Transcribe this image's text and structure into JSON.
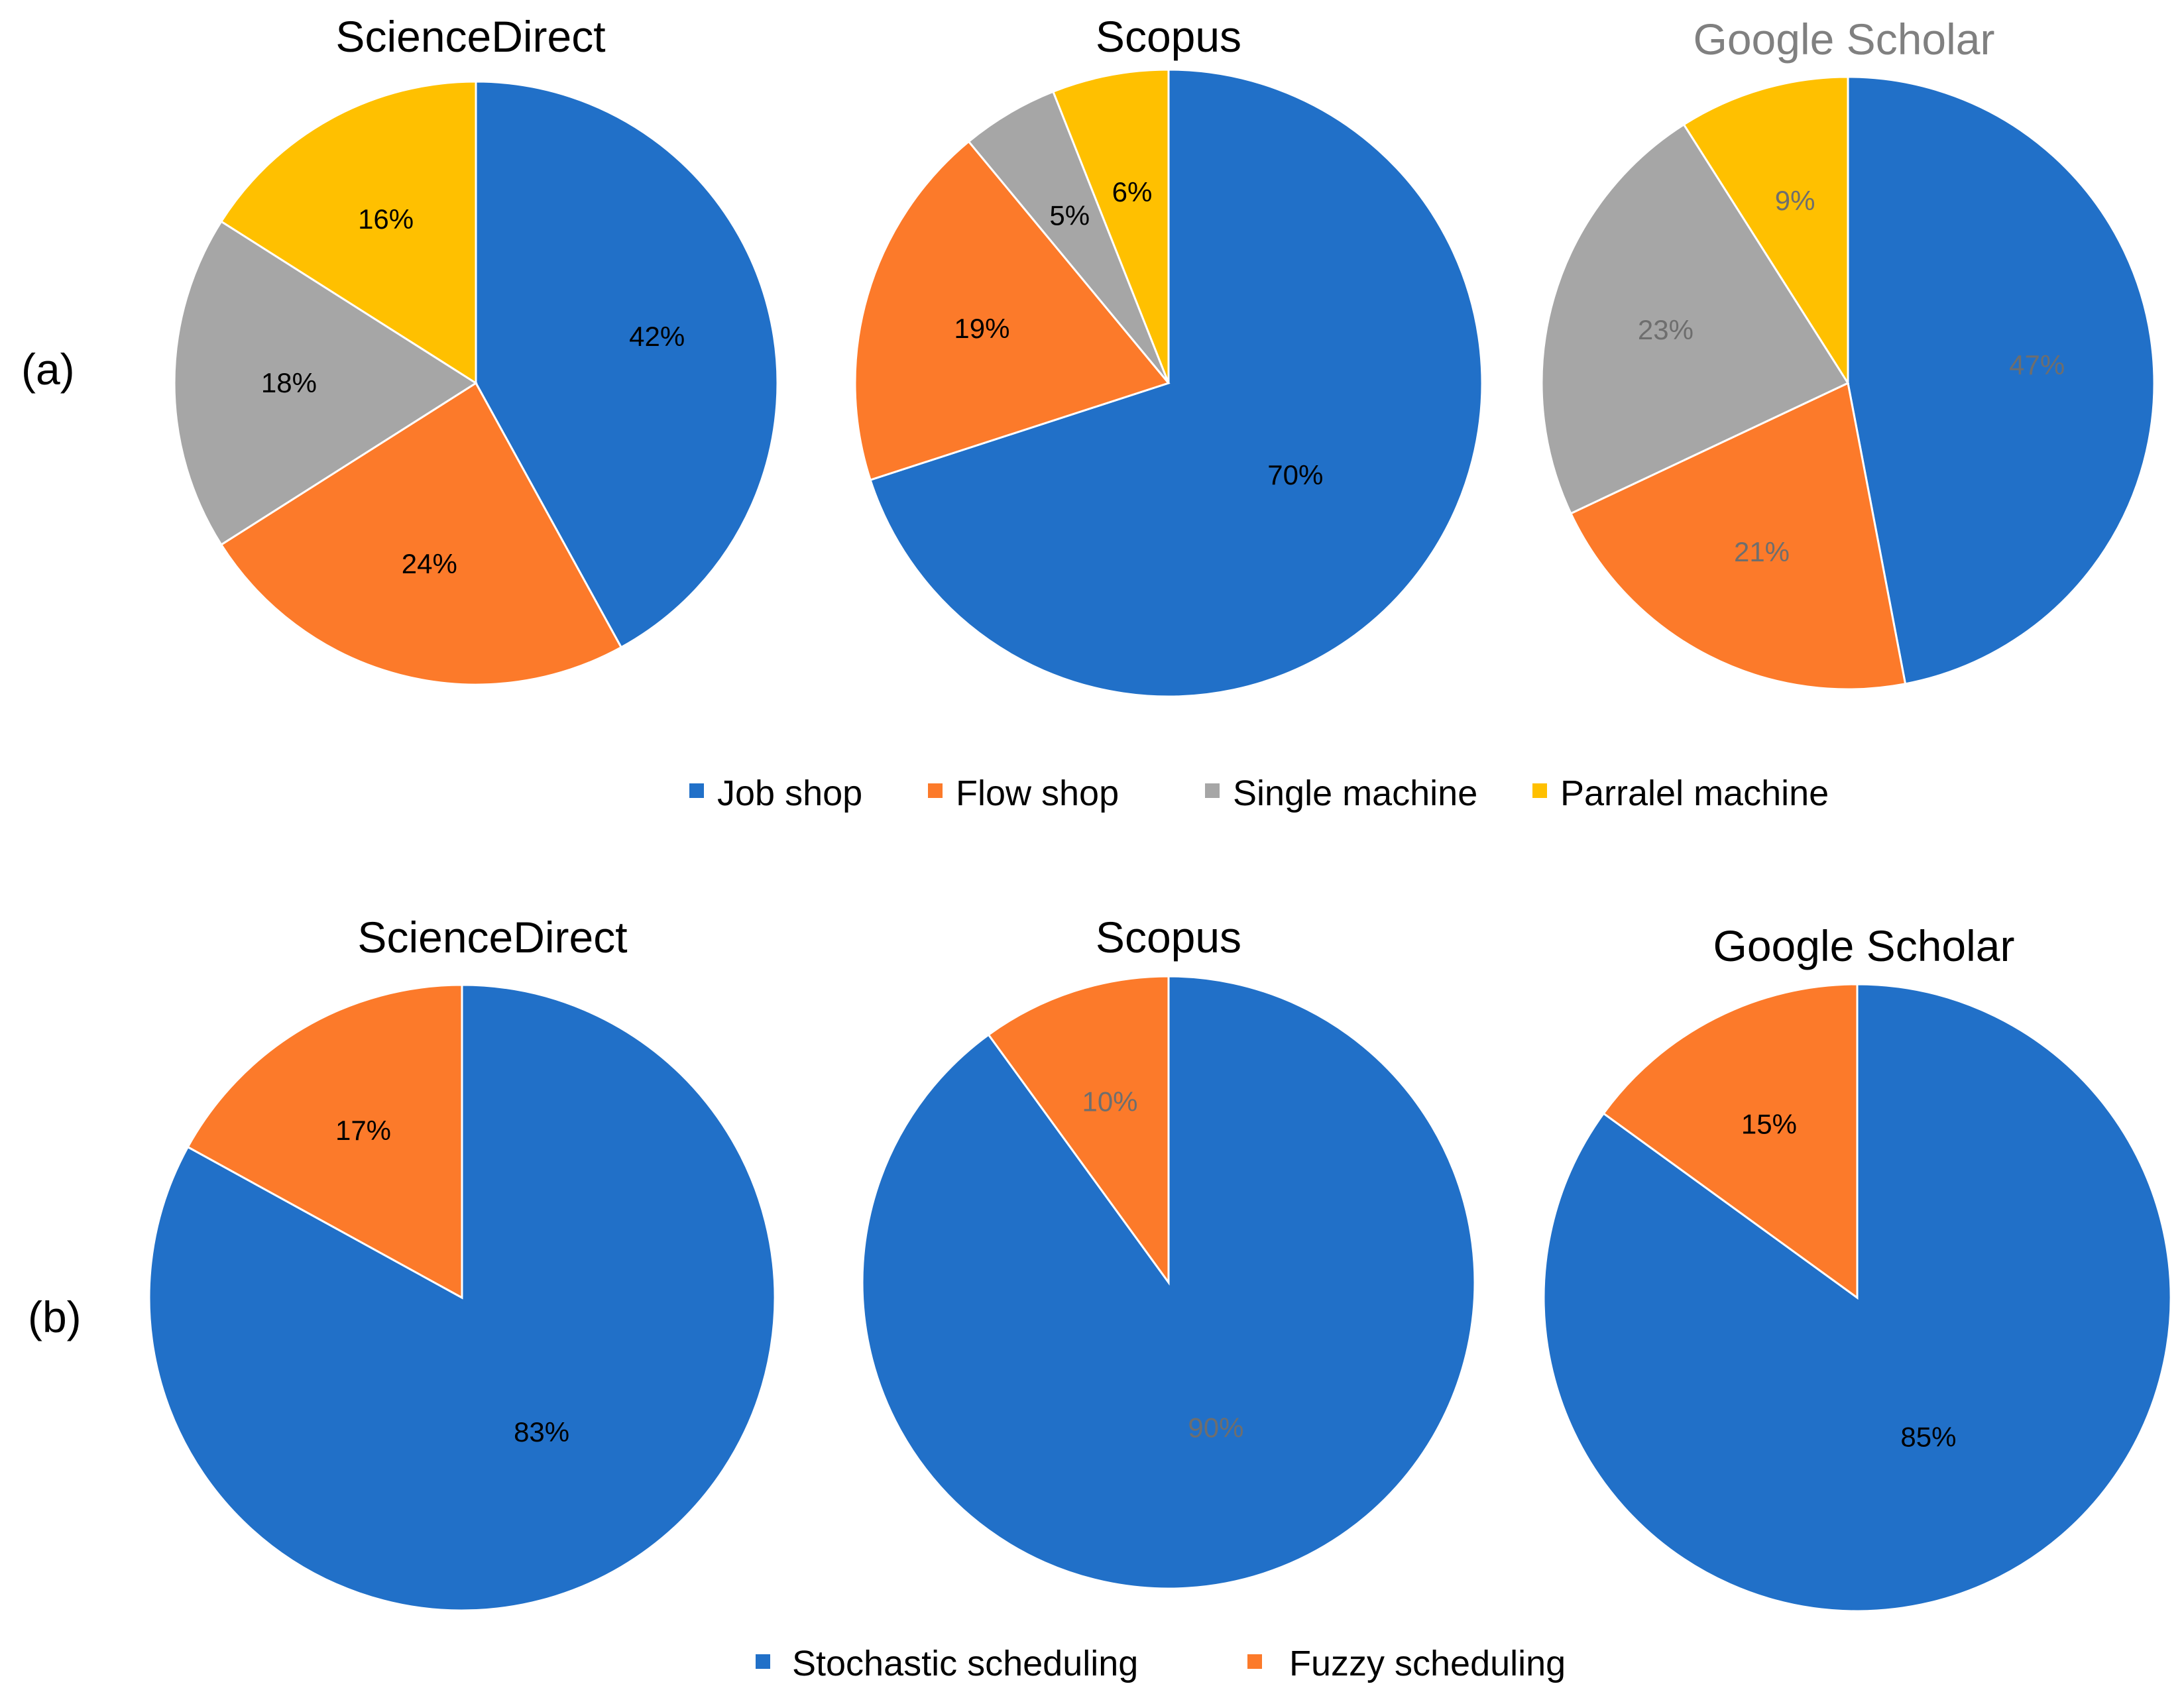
{
  "colors": {
    "blue": "#2170C8",
    "orange": "#FC7A2A",
    "gray": "#A6A6A6",
    "yellow": "#FFC000",
    "dark_text": "#000000",
    "muted_text": "#6E6E6E",
    "title_muted": "#808080",
    "stroke": "#ffffff"
  },
  "chart_data": [
    {
      "type": "pie",
      "panel": "(a)",
      "title": "ScienceDirect",
      "title_color": "#000000",
      "labels": [
        "Job shop",
        "Flow shop",
        "Single machine",
        "Parralel machine"
      ],
      "values": [
        42,
        24,
        18,
        16
      ],
      "data_labels": [
        "42%",
        "24%",
        "18%",
        "16%"
      ],
      "colors": [
        "#2170C8",
        "#FC7A2A",
        "#A6A6A6",
        "#FFC000"
      ],
      "label_colors": [
        "#000000",
        "#000000",
        "#000000",
        "#000000"
      ]
    },
    {
      "type": "pie",
      "panel": "(a)",
      "title": "Scopus",
      "title_color": "#000000",
      "labels": [
        "Job shop",
        "Flow shop",
        "Single machine",
        "Parralel machine"
      ],
      "values": [
        70,
        19,
        5,
        6
      ],
      "data_labels": [
        "70%",
        "19%",
        "5%",
        "6%"
      ],
      "colors": [
        "#2170C8",
        "#FC7A2A",
        "#A6A6A6",
        "#FFC000"
      ],
      "label_colors": [
        "#000000",
        "#000000",
        "#000000",
        "#000000"
      ]
    },
    {
      "type": "pie",
      "panel": "(a)",
      "title": "Google Scholar",
      "title_color": "#808080",
      "labels": [
        "Job shop",
        "Flow shop",
        "Single machine",
        "Parralel machine"
      ],
      "values": [
        47,
        21,
        23,
        9
      ],
      "data_labels": [
        "47%",
        "21%",
        "23%",
        "9%"
      ],
      "colors": [
        "#2170C8",
        "#FC7A2A",
        "#A6A6A6",
        "#FFC000"
      ],
      "label_colors": [
        "#6E6E6E",
        "#6E6E6E",
        "#6E6E6E",
        "#6E6E6E"
      ]
    },
    {
      "type": "pie",
      "panel": "(b)",
      "title": "ScienceDirect",
      "title_color": "#000000",
      "labels": [
        "Stochastic scheduling",
        "Fuzzy scheduling"
      ],
      "values": [
        83,
        17
      ],
      "data_labels": [
        "83%",
        "17%"
      ],
      "colors": [
        "#2170C8",
        "#FC7A2A"
      ],
      "label_colors": [
        "#000000",
        "#000000"
      ]
    },
    {
      "type": "pie",
      "panel": "(b)",
      "title": "Scopus",
      "title_color": "#000000",
      "labels": [
        "Stochastic scheduling",
        "Fuzzy scheduling"
      ],
      "values": [
        90,
        10
      ],
      "data_labels": [
        "90%",
        "10%"
      ],
      "colors": [
        "#2170C8",
        "#FC7A2A"
      ],
      "label_colors": [
        "#6E6E6E",
        "#6E6E6E"
      ]
    },
    {
      "type": "pie",
      "panel": "(b)",
      "title": "Google Scholar",
      "title_color": "#000000",
      "labels": [
        "Stochastic scheduling",
        "Fuzzy scheduling"
      ],
      "values": [
        85,
        15
      ],
      "data_labels": [
        "85%",
        "15%"
      ],
      "colors": [
        "#2170C8",
        "#FC7A2A"
      ],
      "label_colors": [
        "#000000",
        "#000000"
      ]
    }
  ],
  "panels": {
    "a_label": "(a)",
    "b_label": "(b)"
  },
  "legends": {
    "a": [
      {
        "label": "Job shop",
        "color": "#2170C8"
      },
      {
        "label": "Flow shop",
        "color": "#FC7A2A"
      },
      {
        "label": "Single machine",
        "color": "#A6A6A6"
      },
      {
        "label": "Parralel machine",
        "color": "#FFC000"
      }
    ],
    "b": [
      {
        "label": "Stochastic scheduling",
        "color": "#2170C8"
      },
      {
        "label": "Fuzzy scheduling",
        "color": "#FC7A2A"
      }
    ]
  }
}
